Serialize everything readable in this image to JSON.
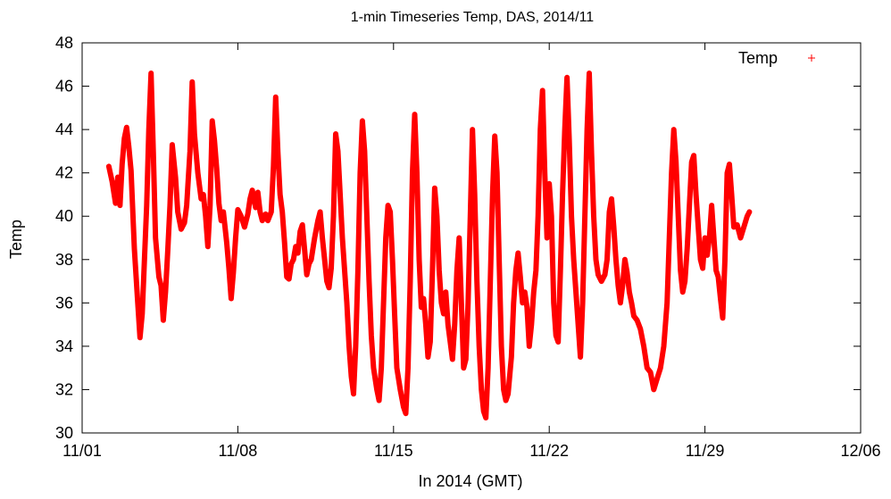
{
  "chart_data": {
    "type": "line",
    "title": "1-min Timeseries Temp, DAS, 2014/11",
    "xlabel": "In 2014 (GMT)",
    "ylabel": "Temp",
    "xlim": [
      0,
      35
    ],
    "ylim": [
      30,
      48
    ],
    "grid": false,
    "legend_position": "top-right",
    "x_ticks": [
      {
        "value": 0,
        "label": "11/01"
      },
      {
        "value": 7,
        "label": "11/08"
      },
      {
        "value": 14,
        "label": "11/15"
      },
      {
        "value": 21,
        "label": "11/22"
      },
      {
        "value": 28,
        "label": "11/29"
      },
      {
        "value": 35,
        "label": "12/06"
      }
    ],
    "y_ticks": [
      30,
      32,
      34,
      36,
      38,
      40,
      42,
      44,
      46,
      48
    ],
    "series": [
      {
        "name": "Temp",
        "color": "#ff0000",
        "points": [
          [
            1.2,
            42.3
          ],
          [
            1.35,
            41.6
          ],
          [
            1.5,
            40.6
          ],
          [
            1.6,
            41.8
          ],
          [
            1.7,
            40.5
          ],
          [
            1.8,
            42.4
          ],
          [
            1.9,
            43.6
          ],
          [
            2.0,
            44.1
          ],
          [
            2.1,
            43.2
          ],
          [
            2.2,
            42.1
          ],
          [
            2.35,
            38.5
          ],
          [
            2.5,
            36.0
          ],
          [
            2.6,
            34.4
          ],
          [
            2.7,
            35.5
          ],
          [
            2.8,
            38.0
          ],
          [
            2.9,
            40.5
          ],
          [
            3.0,
            44.0
          ],
          [
            3.1,
            46.6
          ],
          [
            3.2,
            43.0
          ],
          [
            3.3,
            39.0
          ],
          [
            3.45,
            37.2
          ],
          [
            3.55,
            36.8
          ],
          [
            3.65,
            35.2
          ],
          [
            3.75,
            36.5
          ],
          [
            3.85,
            38.4
          ],
          [
            3.95,
            40.5
          ],
          [
            4.05,
            43.3
          ],
          [
            4.2,
            41.8
          ],
          [
            4.3,
            40.2
          ],
          [
            4.45,
            39.4
          ],
          [
            4.6,
            39.7
          ],
          [
            4.7,
            40.5
          ],
          [
            4.85,
            43.0
          ],
          [
            4.95,
            46.2
          ],
          [
            5.05,
            43.8
          ],
          [
            5.2,
            42.0
          ],
          [
            5.35,
            40.8
          ],
          [
            5.45,
            41.0
          ],
          [
            5.55,
            40.0
          ],
          [
            5.65,
            38.6
          ],
          [
            5.75,
            40.5
          ],
          [
            5.85,
            44.4
          ],
          [
            5.95,
            43.5
          ],
          [
            6.05,
            42.2
          ],
          [
            6.15,
            40.6
          ],
          [
            6.25,
            39.8
          ],
          [
            6.35,
            40.2
          ],
          [
            6.5,
            38.8
          ],
          [
            6.6,
            37.6
          ],
          [
            6.7,
            36.2
          ],
          [
            6.8,
            37.4
          ],
          [
            6.9,
            39.0
          ],
          [
            7.0,
            40.3
          ],
          [
            7.15,
            40.0
          ],
          [
            7.3,
            39.5
          ],
          [
            7.45,
            40.1
          ],
          [
            7.55,
            40.8
          ],
          [
            7.65,
            41.2
          ],
          [
            7.8,
            40.4
          ],
          [
            7.9,
            41.1
          ],
          [
            8.0,
            40.2
          ],
          [
            8.1,
            39.8
          ],
          [
            8.25,
            40.1
          ],
          [
            8.35,
            39.8
          ],
          [
            8.5,
            40.2
          ],
          [
            8.6,
            42.3
          ],
          [
            8.7,
            45.5
          ],
          [
            8.8,
            43.0
          ],
          [
            8.9,
            41.0
          ],
          [
            9.0,
            40.2
          ],
          [
            9.1,
            38.8
          ],
          [
            9.2,
            37.2
          ],
          [
            9.3,
            37.1
          ],
          [
            9.4,
            37.8
          ],
          [
            9.5,
            38.0
          ],
          [
            9.6,
            38.6
          ],
          [
            9.7,
            38.3
          ],
          [
            9.8,
            39.3
          ],
          [
            9.9,
            39.6
          ],
          [
            10.0,
            38.5
          ],
          [
            10.1,
            37.3
          ],
          [
            10.2,
            37.8
          ],
          [
            10.3,
            38.0
          ],
          [
            10.45,
            39.0
          ],
          [
            10.6,
            39.8
          ],
          [
            10.7,
            40.2
          ],
          [
            10.8,
            39.0
          ],
          [
            10.9,
            38.0
          ],
          [
            11.0,
            37.0
          ],
          [
            11.1,
            36.7
          ],
          [
            11.2,
            37.6
          ],
          [
            11.3,
            40.0
          ],
          [
            11.4,
            43.8
          ],
          [
            11.5,
            43.0
          ],
          [
            11.6,
            41.0
          ],
          [
            11.7,
            39.0
          ],
          [
            11.8,
            37.5
          ],
          [
            11.9,
            36.0
          ],
          [
            12.0,
            34.0
          ],
          [
            12.1,
            32.6
          ],
          [
            12.2,
            31.8
          ],
          [
            12.3,
            34.0
          ],
          [
            12.4,
            37.5
          ],
          [
            12.5,
            42.0
          ],
          [
            12.6,
            44.4
          ],
          [
            12.7,
            43.0
          ],
          [
            12.8,
            40.0
          ],
          [
            12.9,
            37.0
          ],
          [
            13.0,
            34.5
          ],
          [
            13.1,
            33.0
          ],
          [
            13.25,
            32.0
          ],
          [
            13.35,
            31.5
          ],
          [
            13.45,
            33.0
          ],
          [
            13.55,
            36.0
          ],
          [
            13.65,
            39.0
          ],
          [
            13.75,
            40.5
          ],
          [
            13.85,
            40.2
          ],
          [
            13.95,
            38.0
          ],
          [
            14.05,
            35.5
          ],
          [
            14.15,
            33.0
          ],
          [
            14.3,
            32.0
          ],
          [
            14.45,
            31.2
          ],
          [
            14.55,
            30.9
          ],
          [
            14.65,
            33.0
          ],
          [
            14.75,
            37.0
          ],
          [
            14.85,
            42.0
          ],
          [
            14.95,
            44.7
          ],
          [
            15.05,
            42.0
          ],
          [
            15.15,
            38.0
          ],
          [
            15.25,
            35.8
          ],
          [
            15.35,
            36.2
          ],
          [
            15.45,
            35.0
          ],
          [
            15.55,
            33.5
          ],
          [
            15.65,
            34.2
          ],
          [
            15.75,
            37.5
          ],
          [
            15.85,
            41.3
          ],
          [
            15.95,
            40.0
          ],
          [
            16.05,
            37.5
          ],
          [
            16.15,
            36.0
          ],
          [
            16.25,
            35.5
          ],
          [
            16.35,
            36.5
          ],
          [
            16.45,
            35.0
          ],
          [
            16.55,
            34.2
          ],
          [
            16.65,
            33.4
          ],
          [
            16.75,
            35.0
          ],
          [
            16.85,
            37.5
          ],
          [
            16.95,
            39.0
          ],
          [
            17.05,
            36.0
          ],
          [
            17.15,
            33.0
          ],
          [
            17.25,
            33.4
          ],
          [
            17.35,
            36.0
          ],
          [
            17.45,
            40.0
          ],
          [
            17.55,
            44.0
          ],
          [
            17.65,
            41.0
          ],
          [
            17.75,
            37.0
          ],
          [
            17.85,
            34.0
          ],
          [
            17.95,
            32.0
          ],
          [
            18.05,
            31.0
          ],
          [
            18.15,
            30.7
          ],
          [
            18.25,
            33.0
          ],
          [
            18.35,
            37.0
          ],
          [
            18.45,
            41.0
          ],
          [
            18.55,
            43.7
          ],
          [
            18.65,
            42.0
          ],
          [
            18.75,
            38.0
          ],
          [
            18.85,
            34.0
          ],
          [
            18.95,
            32.0
          ],
          [
            19.05,
            31.5
          ],
          [
            19.15,
            31.8
          ],
          [
            19.3,
            33.5
          ],
          [
            19.4,
            36.0
          ],
          [
            19.5,
            37.5
          ],
          [
            19.6,
            38.3
          ],
          [
            19.7,
            37.2
          ],
          [
            19.8,
            36.0
          ],
          [
            19.9,
            36.5
          ],
          [
            20.0,
            35.8
          ],
          [
            20.1,
            34.0
          ],
          [
            20.2,
            35.0
          ],
          [
            20.3,
            36.5
          ],
          [
            20.4,
            37.5
          ],
          [
            20.5,
            40.0
          ],
          [
            20.6,
            44.0
          ],
          [
            20.7,
            45.8
          ],
          [
            20.8,
            42.0
          ],
          [
            20.9,
            39.0
          ],
          [
            21.0,
            41.5
          ],
          [
            21.1,
            40.0
          ],
          [
            21.2,
            36.0
          ],
          [
            21.3,
            34.5
          ],
          [
            21.4,
            34.2
          ],
          [
            21.5,
            37.5
          ],
          [
            21.6,
            41.0
          ],
          [
            21.7,
            44.0
          ],
          [
            21.8,
            46.4
          ],
          [
            21.9,
            43.5
          ],
          [
            22.0,
            40.0
          ],
          [
            22.1,
            38.0
          ],
          [
            22.2,
            36.5
          ],
          [
            22.3,
            35.0
          ],
          [
            22.4,
            33.5
          ],
          [
            22.5,
            36.0
          ],
          [
            22.6,
            40.0
          ],
          [
            22.7,
            44.0
          ],
          [
            22.8,
            46.6
          ],
          [
            22.9,
            43.0
          ],
          [
            23.0,
            40.0
          ],
          [
            23.1,
            38.0
          ],
          [
            23.2,
            37.3
          ],
          [
            23.35,
            37.0
          ],
          [
            23.5,
            37.3
          ],
          [
            23.6,
            38.0
          ],
          [
            23.7,
            40.2
          ],
          [
            23.8,
            40.8
          ],
          [
            23.9,
            39.5
          ],
          [
            24.0,
            38.0
          ],
          [
            24.1,
            36.8
          ],
          [
            24.2,
            36.0
          ],
          [
            24.3,
            36.8
          ],
          [
            24.4,
            38.0
          ],
          [
            24.5,
            37.4
          ],
          [
            24.6,
            36.5
          ],
          [
            24.7,
            36.0
          ],
          [
            24.8,
            35.4
          ],
          [
            24.95,
            35.2
          ],
          [
            25.1,
            34.8
          ],
          [
            25.25,
            34.0
          ],
          [
            25.4,
            33.0
          ],
          [
            25.55,
            32.8
          ],
          [
            25.7,
            32.0
          ],
          [
            25.85,
            32.5
          ],
          [
            26.0,
            33.0
          ],
          [
            26.15,
            34.0
          ],
          [
            26.3,
            36.0
          ],
          [
            26.4,
            39.0
          ],
          [
            26.5,
            42.0
          ],
          [
            26.6,
            44.0
          ],
          [
            26.7,
            42.5
          ],
          [
            26.8,
            40.0
          ],
          [
            26.9,
            37.5
          ],
          [
            27.0,
            36.5
          ],
          [
            27.1,
            37.0
          ],
          [
            27.2,
            38.5
          ],
          [
            27.3,
            40.5
          ],
          [
            27.4,
            42.5
          ],
          [
            27.5,
            42.8
          ],
          [
            27.6,
            41.0
          ],
          [
            27.7,
            39.5
          ],
          [
            27.8,
            38.0
          ],
          [
            27.9,
            37.6
          ],
          [
            28.0,
            39.0
          ],
          [
            28.1,
            38.2
          ],
          [
            28.2,
            39.0
          ],
          [
            28.3,
            40.5
          ],
          [
            28.4,
            39.0
          ],
          [
            28.5,
            37.5
          ],
          [
            28.6,
            37.2
          ],
          [
            28.7,
            36.2
          ],
          [
            28.8,
            35.3
          ],
          [
            28.9,
            38.0
          ],
          [
            29.0,
            42.0
          ],
          [
            29.1,
            42.4
          ],
          [
            29.2,
            41.0
          ],
          [
            29.3,
            39.5
          ],
          [
            29.45,
            39.6
          ],
          [
            29.6,
            39.0
          ],
          [
            29.75,
            39.5
          ],
          [
            29.9,
            40.0
          ],
          [
            30.0,
            40.2
          ]
        ]
      }
    ]
  }
}
